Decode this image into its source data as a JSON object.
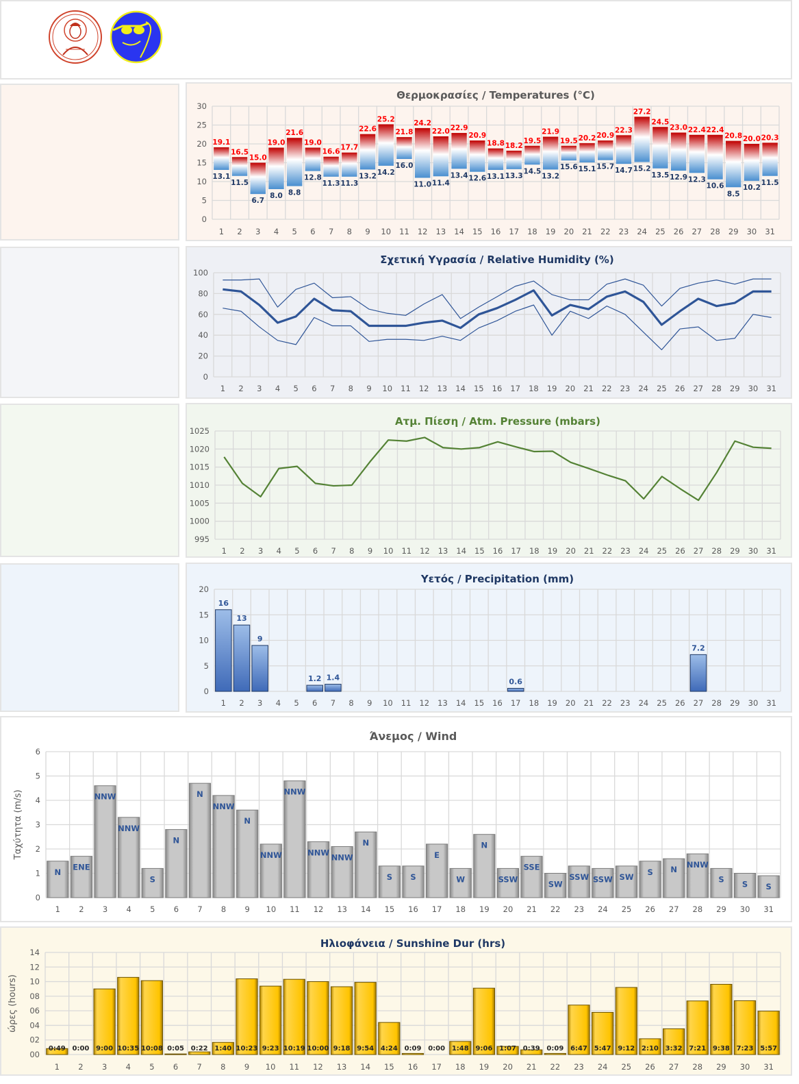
{
  "colors": {
    "temp_panel": "#fdf4ee",
    "hum_panel": "#eef0f5",
    "pres_panel": "#f1f6ee",
    "prec_panel": "#eef4fb",
    "wind_panel": "#ffffff",
    "sun_panel": "#fdf8e8",
    "tmax_label": "#ff0000",
    "tmin_label": "#1f3864",
    "humidity_line": "#2f5597",
    "pressure_line": "#548235",
    "precip_bar": "#4472c4",
    "wind_bar": "#b0b0b0",
    "wind_label": "#2f5597",
    "sun_bar": "#ffc000"
  },
  "chart_data": [
    {
      "id": "temp",
      "type": "bar",
      "subtype": "floating-range",
      "title": "Θερμοκρασίες / Temperatures (°C)",
      "categories": [
        "1",
        "2",
        "3",
        "4",
        "5",
        "6",
        "7",
        "8",
        "9",
        "10",
        "11",
        "12",
        "13",
        "14",
        "15",
        "16",
        "17",
        "18",
        "19",
        "20",
        "21",
        "22",
        "23",
        "24",
        "25",
        "26",
        "27",
        "28",
        "29",
        "30",
        "31"
      ],
      "yticks": [
        "0",
        "5",
        "10",
        "15",
        "20",
        "25",
        "30"
      ],
      "ylim": [
        0,
        30
      ],
      "series": [
        {
          "name": "max",
          "values": [
            19.1,
            16.5,
            15.0,
            19.0,
            21.6,
            19.0,
            16.6,
            17.7,
            22.6,
            25.2,
            21.8,
            24.2,
            22.0,
            22.9,
            20.9,
            18.8,
            18.2,
            19.5,
            21.9,
            19.5,
            20.2,
            20.9,
            22.3,
            27.2,
            24.5,
            23.0,
            22.4,
            22.4,
            20.8,
            20.0,
            20.3
          ]
        },
        {
          "name": "min",
          "values": [
            13.1,
            11.5,
            6.7,
            8.0,
            8.8,
            12.8,
            11.3,
            11.3,
            13.2,
            14.2,
            16.0,
            11.0,
            11.4,
            13.4,
            12.6,
            13.1,
            13.3,
            14.5,
            13.2,
            15.6,
            15.1,
            15.7,
            14.7,
            15.2,
            13.5,
            12.9,
            12.3,
            10.6,
            8.5,
            10.2,
            11.5
          ]
        }
      ]
    },
    {
      "id": "hum",
      "type": "line",
      "title": "Σχετική Υγρασία / Relative Humidity (%)",
      "categories": [
        "1",
        "2",
        "3",
        "4",
        "5",
        "6",
        "7",
        "8",
        "9",
        "10",
        "11",
        "12",
        "13",
        "14",
        "15",
        "16",
        "17",
        "18",
        "19",
        "20",
        "21",
        "22",
        "23",
        "24",
        "25",
        "26",
        "27",
        "28",
        "29",
        "30",
        "31"
      ],
      "yticks": [
        "0",
        "20",
        "40",
        "60",
        "80",
        "100"
      ],
      "ylim": [
        0,
        100
      ],
      "series": [
        {
          "name": "max",
          "values": [
            93,
            93,
            94,
            67,
            84,
            90,
            76,
            77,
            65,
            61,
            59,
            70,
            79,
            56,
            67,
            77,
            87,
            92,
            79,
            74,
            74,
            89,
            94,
            88,
            68,
            85,
            90,
            93,
            89,
            94,
            94
          ]
        },
        {
          "name": "mean",
          "values": [
            84,
            82,
            69,
            52,
            58,
            75,
            64,
            63,
            49,
            49,
            49,
            52,
            54,
            47,
            60,
            66,
            74,
            83,
            59,
            69,
            65,
            77,
            82,
            72,
            50,
            63,
            75,
            68,
            71,
            82,
            82
          ]
        },
        {
          "name": "min",
          "values": [
            66,
            63,
            48,
            35,
            31,
            57,
            49,
            49,
            34,
            36,
            36,
            35,
            39,
            35,
            47,
            54,
            63,
            69,
            40,
            63,
            56,
            68,
            60,
            43,
            26,
            46,
            48,
            35,
            37,
            60,
            57
          ]
        }
      ]
    },
    {
      "id": "pres",
      "type": "line",
      "title": "Ατμ. Πίεση / Atm. Pressure (mbars)",
      "categories": [
        "1",
        "2",
        "3",
        "4",
        "5",
        "6",
        "7",
        "8",
        "9",
        "10",
        "11",
        "12",
        "13",
        "14",
        "15",
        "16",
        "17",
        "18",
        "19",
        "20",
        "21",
        "22",
        "23",
        "24",
        "25",
        "26",
        "27",
        "28",
        "29",
        "30",
        "31"
      ],
      "yticks": [
        "995",
        "1000",
        "1005",
        "1010",
        "1015",
        "1020",
        "1025"
      ],
      "ylim": [
        995,
        1025
      ],
      "series": [
        {
          "name": "pressure",
          "values": [
            1017.8,
            1010.5,
            1006.8,
            1014.6,
            1015.2,
            1010.5,
            1009.8,
            1010.0,
            1016.5,
            1022.5,
            1022.2,
            1023.2,
            1020.4,
            1020.0,
            1020.4,
            1022.0,
            1020.6,
            1019.3,
            1019.4,
            1016.3,
            1014.6,
            1012.8,
            1011.2,
            1006.2,
            1012.4,
            1009.0,
            1005.8,
            1013.5,
            1022.2,
            1020.5,
            1020.2
          ]
        }
      ]
    },
    {
      "id": "prec",
      "type": "bar",
      "title": "Υετός / Precipitation (mm)",
      "categories": [
        "1",
        "2",
        "3",
        "4",
        "5",
        "6",
        "7",
        "8",
        "9",
        "10",
        "11",
        "12",
        "13",
        "14",
        "15",
        "16",
        "17",
        "18",
        "19",
        "20",
        "21",
        "22",
        "23",
        "24",
        "25",
        "26",
        "27",
        "28",
        "29",
        "30",
        "31"
      ],
      "yticks": [
        "0",
        "5",
        "10",
        "15",
        "20"
      ],
      "ylim": [
        0,
        20
      ],
      "values": [
        16,
        13,
        9,
        0,
        0,
        1.2,
        1.4,
        0,
        0,
        0,
        0,
        0,
        0,
        0,
        0,
        0,
        0.6,
        0,
        0,
        0,
        0,
        0,
        0,
        0,
        0,
        0,
        7.2,
        0,
        0,
        0,
        0
      ],
      "labels": [
        "16",
        "13",
        "9",
        "",
        "",
        "1.2",
        "1.4",
        "",
        "",
        "",
        "",
        "",
        "",
        "",
        "",
        "",
        "0.6",
        "",
        "",
        "",
        "",
        "",
        "",
        "",
        "",
        "",
        "7.2",
        "",
        "",
        "",
        ""
      ]
    },
    {
      "id": "wind",
      "type": "bar",
      "title": "Άνεμος / Wind",
      "ylabel": "Ταχύτητα  (m/s)",
      "categories": [
        "1",
        "2",
        "3",
        "4",
        "5",
        "6",
        "7",
        "8",
        "9",
        "10",
        "11",
        "12",
        "13",
        "14",
        "15",
        "16",
        "17",
        "18",
        "19",
        "20",
        "21",
        "22",
        "23",
        "24",
        "25",
        "26",
        "27",
        "28",
        "29",
        "30",
        "31"
      ],
      "yticks": [
        "0",
        "1",
        "2",
        "3",
        "4",
        "5",
        "6"
      ],
      "ylim": [
        0,
        6
      ],
      "values": [
        1.5,
        1.7,
        4.6,
        3.3,
        1.2,
        2.8,
        4.7,
        4.2,
        3.6,
        2.2,
        4.8,
        2.3,
        2.1,
        2.7,
        1.3,
        1.3,
        2.2,
        1.2,
        2.6,
        1.2,
        1.7,
        1.0,
        1.3,
        1.2,
        1.3,
        1.5,
        1.6,
        1.8,
        1.2,
        1.0,
        0.9
      ],
      "labels": [
        "N",
        "ENE",
        "NNW",
        "NNW",
        "S",
        "N",
        "N",
        "NNW",
        "N",
        "NNW",
        "NNW",
        "NNW",
        "NNW",
        "N",
        "S",
        "S",
        "E",
        "W",
        "N",
        "SSW",
        "SSE",
        "SW",
        "SSW",
        "SSW",
        "SW",
        "S",
        "N",
        "NNW",
        "S",
        "S",
        "S"
      ]
    },
    {
      "id": "sun",
      "type": "bar",
      "title": "Ηλιοφάνεια / Sunshine Dur (hrs)",
      "ylabel": "ώρες (hours)",
      "categories": [
        "1",
        "2",
        "3",
        "4",
        "5",
        "6",
        "7",
        "8",
        "9",
        "10",
        "11",
        "12",
        "13",
        "14",
        "15",
        "16",
        "17",
        "18",
        "19",
        "20",
        "21",
        "22",
        "23",
        "24",
        "25",
        "26",
        "27",
        "28",
        "29",
        "30",
        "31"
      ],
      "yticks": [
        "00",
        "02",
        "04",
        "06",
        "08",
        "10",
        "12",
        "14"
      ],
      "ylim": [
        0,
        14
      ],
      "labels": [
        "0:49",
        "0:00",
        "9:00",
        "10:35",
        "10:08",
        "0:05",
        "0:22",
        "1:40",
        "10:23",
        "9:23",
        "10:19",
        "10:00",
        "9:18",
        "9:54",
        "4:24",
        "0:09",
        "0:00",
        "1:48",
        "9:06",
        "1:07",
        "0:39",
        "0:09",
        "6:47",
        "5:47",
        "9:12",
        "2:10",
        "3:32",
        "7:21",
        "9:38",
        "7:23",
        "5:57"
      ]
    }
  ]
}
